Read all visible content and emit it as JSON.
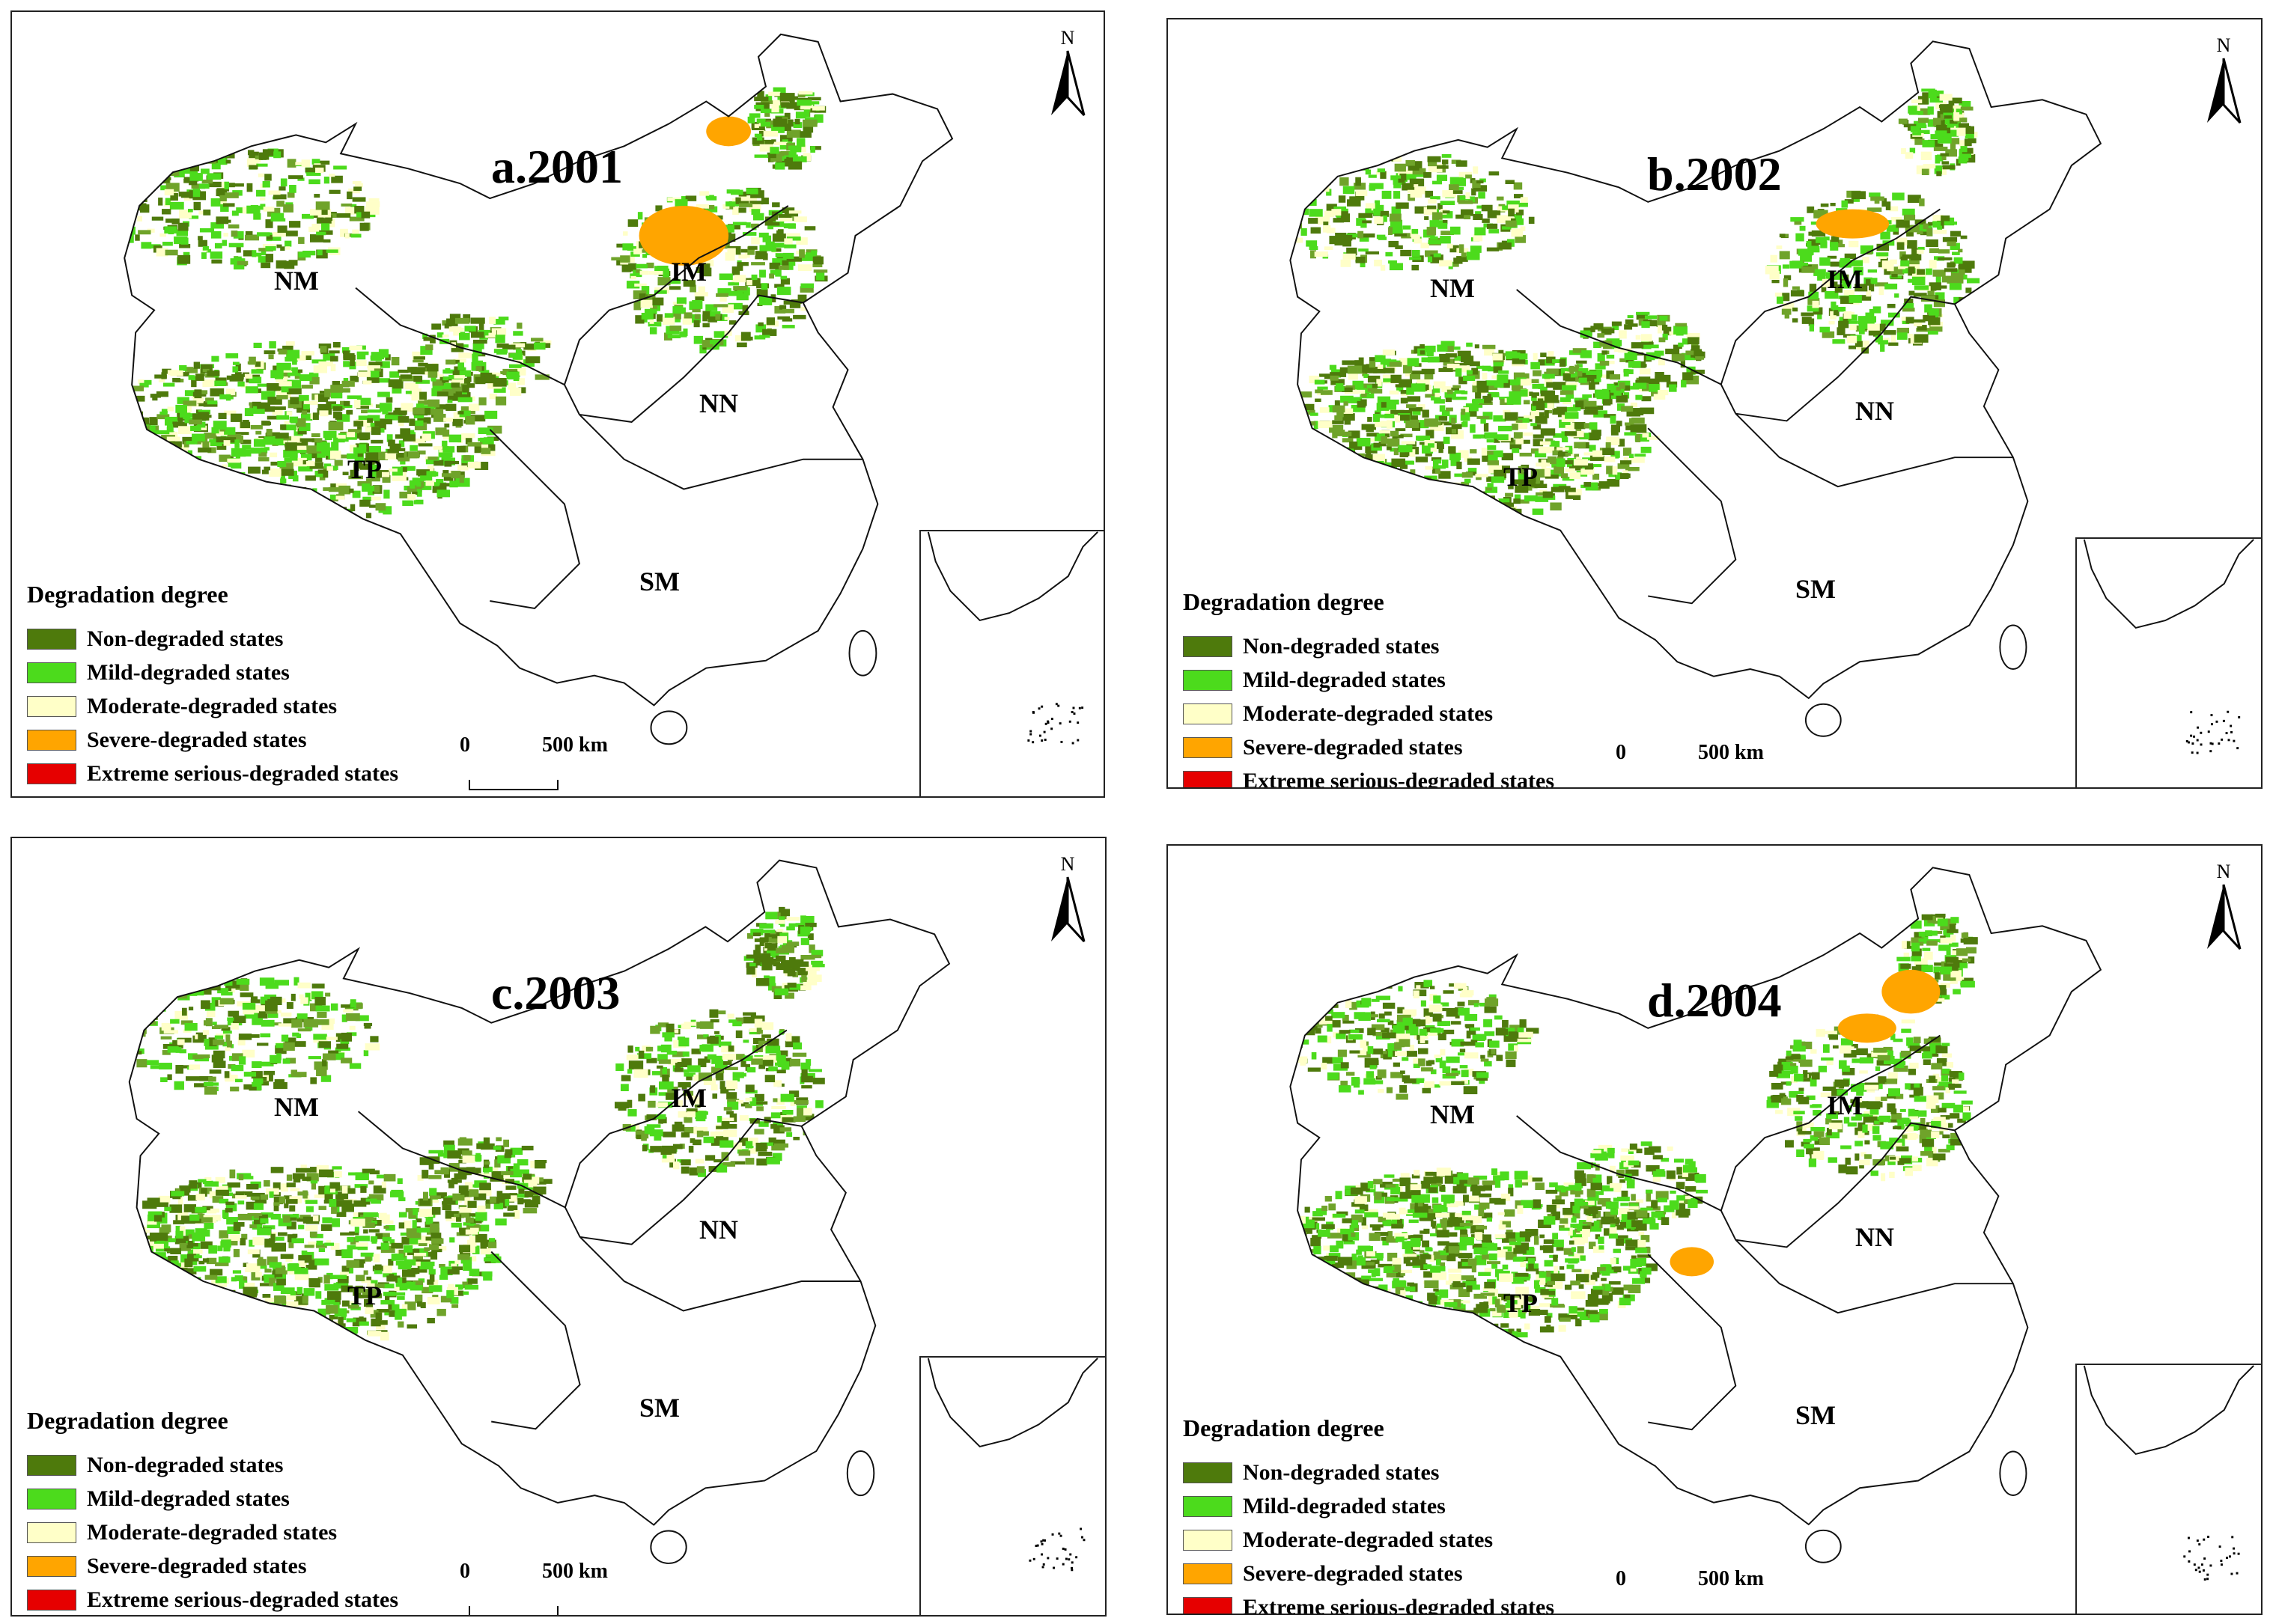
{
  "panels": [
    {
      "title": "a.2001"
    },
    {
      "title": "b.2002"
    },
    {
      "title": "c.2003"
    },
    {
      "title": "d.2004"
    }
  ],
  "regions": {
    "nm": "NM",
    "im": "IM",
    "nn": "NN",
    "tp": "TP",
    "sm": "SM"
  },
  "north_arrow": {
    "label": "N"
  },
  "legend": {
    "title": "Degradation degree",
    "items": [
      {
        "label": "Non-degraded states",
        "color": "#4e7a0c"
      },
      {
        "label": "Mild-degraded states",
        "color": "#4cdb1c"
      },
      {
        "label": "Moderate-degraded states",
        "color": "#ffffc8"
      },
      {
        "label": "Severe-degraded states",
        "color": "#ffa500"
      },
      {
        "label": "Extreme serious-degraded states",
        "color": "#e60000"
      }
    ]
  },
  "scale_bar": {
    "start": "0",
    "end": "500  km"
  }
}
